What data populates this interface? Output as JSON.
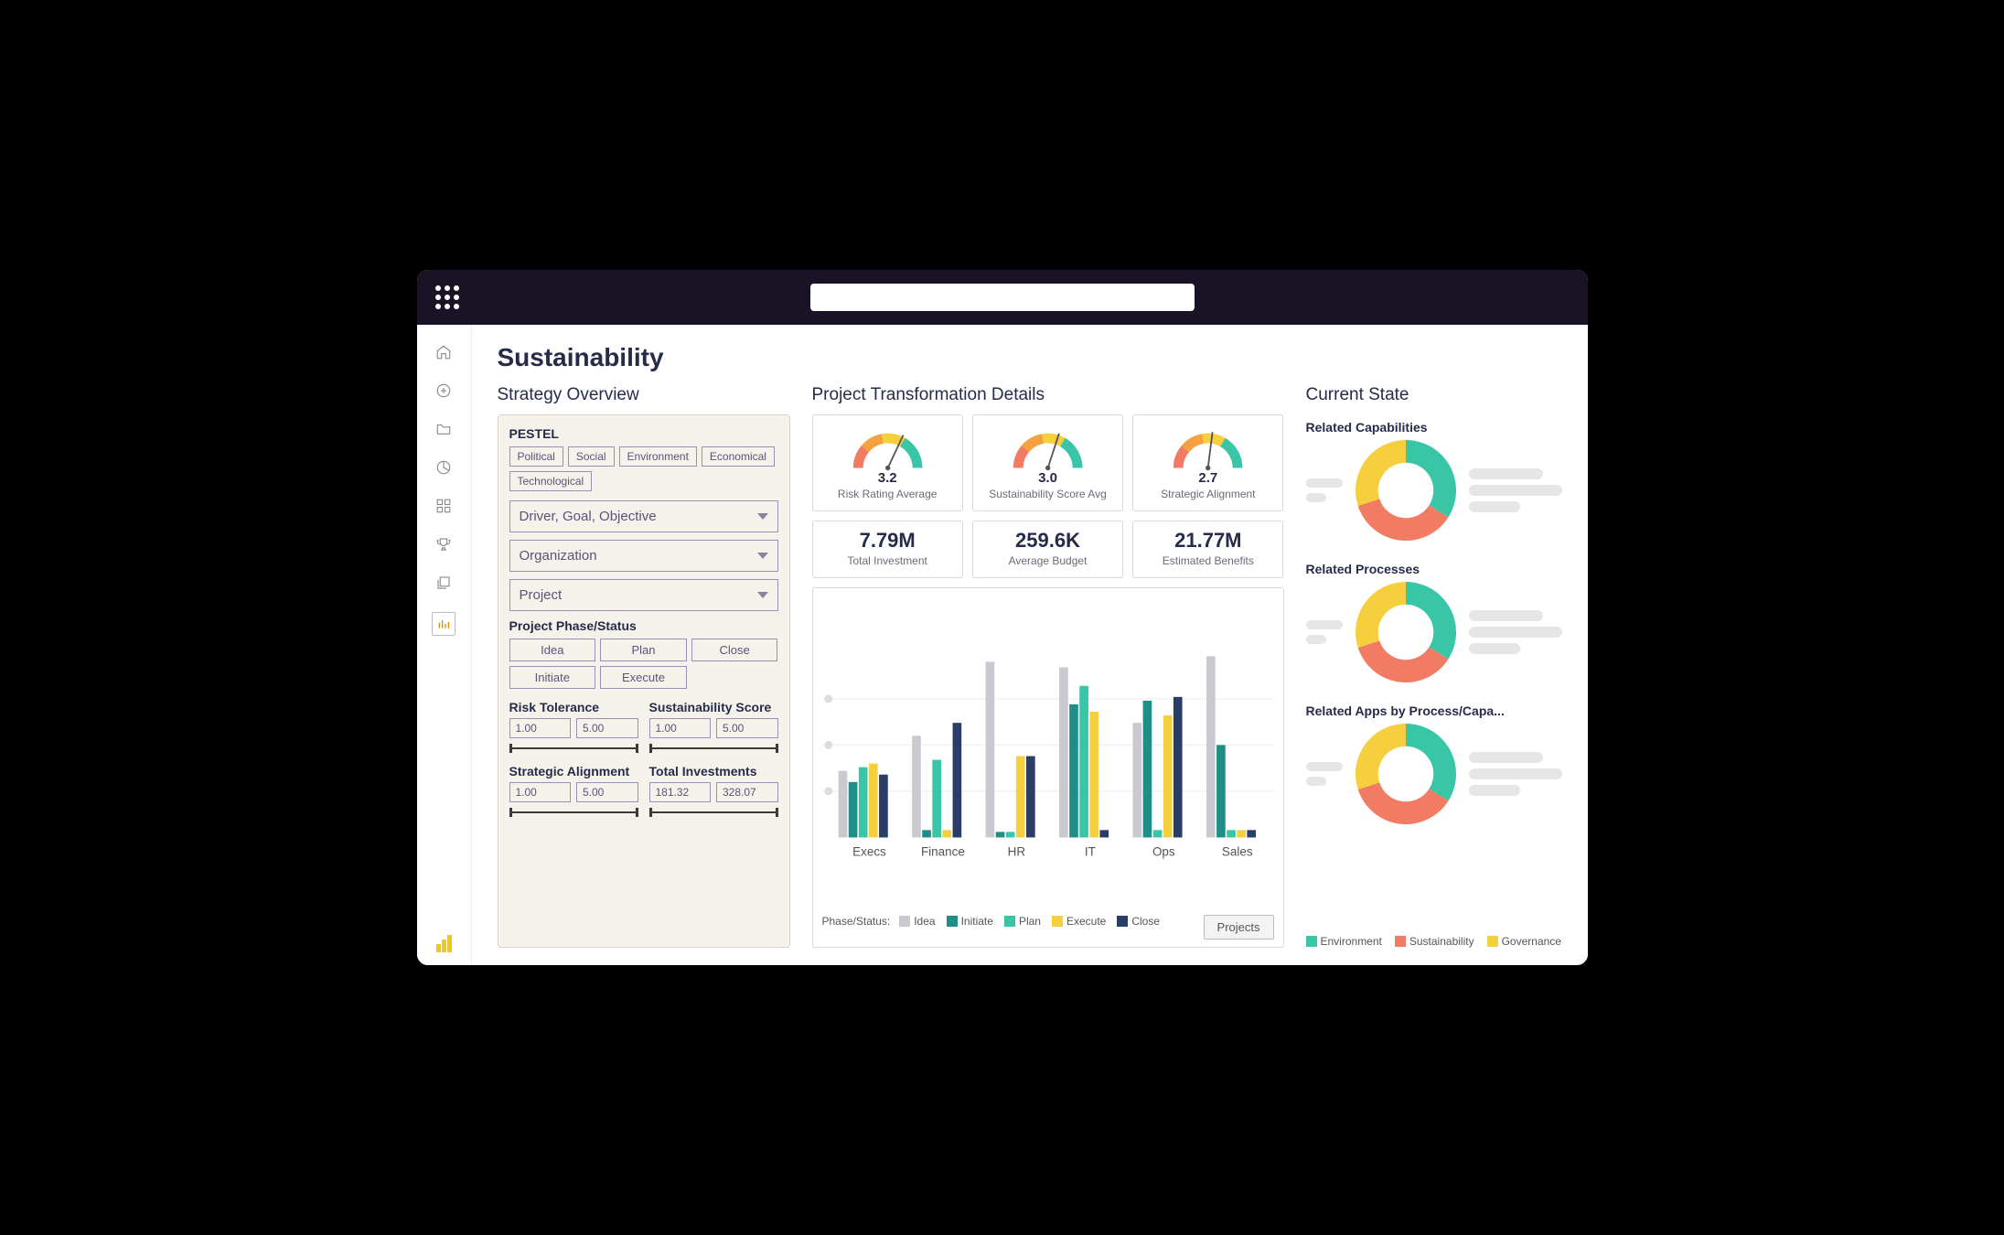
{
  "page_title": "Sustainability",
  "colors": {
    "text_dark": "#272b4a",
    "text_muted": "#6a6a78",
    "border_purple": "#9a8fb5",
    "panel_bg": "#f5f2ec",
    "card_border": "#d7d7de",
    "green": "#38c6a6",
    "coral": "#f27b63",
    "yellow": "#f6cf3f",
    "navy": "#2a3d66",
    "grey": "#c9c9cf",
    "teal": "#1f8e89",
    "skeleton": "#e6e6e6"
  },
  "strategy": {
    "title": "Strategy Overview",
    "pestel_label": "PESTEL",
    "pestel_items": [
      "Political",
      "Social",
      "Environment",
      "Economical",
      "Technological"
    ],
    "dropdowns": [
      {
        "label": "Driver, Goal, Objective"
      },
      {
        "label": "Organization"
      },
      {
        "label": "Project"
      }
    ],
    "phase_label": "Project Phase/Status",
    "phase_items": [
      "Idea",
      "Plan",
      "Close",
      "Initiate",
      "Execute"
    ],
    "ranges": [
      {
        "label": "Risk Tolerance",
        "min": "1.00",
        "max": "5.00"
      },
      {
        "label": "Sustainability Score",
        "min": "1.00",
        "max": "5.00"
      },
      {
        "label": "Strategic Alignment",
        "min": "1.00",
        "max": "5.00"
      },
      {
        "label": "Total Investments",
        "min": "181.32",
        "max": "328.07"
      }
    ]
  },
  "project": {
    "title": "Project Transformation Details",
    "gauges": [
      {
        "value": "3.2",
        "label": "Risk Rating Average",
        "frac": 0.64
      },
      {
        "value": "3.0",
        "label": "Sustainability Score Avg",
        "frac": 0.6
      },
      {
        "value": "2.7",
        "label": "Strategic Alignment",
        "frac": 0.54
      }
    ],
    "kpis": [
      {
        "value": "7.79M",
        "label": "Total Investment"
      },
      {
        "value": "259.6K",
        "label": "Average Budget"
      },
      {
        "value": "21.77M",
        "label": "Estimated Benefits"
      }
    ],
    "bar_chart": {
      "categories": [
        "Execs",
        "Finance",
        "HR",
        "IT",
        "Ops",
        "Sales"
      ],
      "phase_order": [
        "Idea",
        "Initiate",
        "Plan",
        "Execute",
        "Close"
      ],
      "phase_colors": {
        "Idea": "#c9c9cf",
        "Initiate": "#1f8e89",
        "Plan": "#38c6a6",
        "Execute": "#f6cf3f",
        "Close": "#2a3d66"
      },
      "ymax": 100,
      "data": {
        "Execs": {
          "Idea": 36,
          "Initiate": 30,
          "Plan": 38,
          "Execute": 40,
          "Close": 34
        },
        "Finance": {
          "Idea": 55,
          "Initiate": 4,
          "Plan": 42,
          "Execute": 4,
          "Close": 62
        },
        "HR": {
          "Idea": 95,
          "Initiate": 3,
          "Plan": 3,
          "Execute": 44,
          "Close": 44
        },
        "IT": {
          "Idea": 92,
          "Initiate": 72,
          "Plan": 82,
          "Execute": 68,
          "Close": 4
        },
        "Ops": {
          "Idea": 62,
          "Initiate": 74,
          "Plan": 4,
          "Execute": 66,
          "Close": 76
        },
        "Sales": {
          "Idea": 98,
          "Initiate": 50,
          "Plan": 4,
          "Execute": 4,
          "Close": 4
        }
      },
      "legend_title": "Phase/Status:",
      "projects_button": "Projects"
    }
  },
  "current": {
    "title": "Current State",
    "sections": [
      {
        "title": "Related Capabilities"
      },
      {
        "title": "Related Processes"
      },
      {
        "title": "Related Apps by Process/Capa..."
      }
    ],
    "donut": {
      "slices": [
        {
          "label": "Environment",
          "color": "#38c6a6",
          "frac": 0.34
        },
        {
          "label": "Sustainability",
          "color": "#f27b63",
          "frac": 0.36
        },
        {
          "label": "Governance",
          "color": "#f6cf3f",
          "frac": 0.3
        }
      ],
      "inner_ratio": 0.55
    }
  },
  "sidebar_icons": [
    "home-icon",
    "add-icon",
    "folder-icon",
    "pie-icon",
    "apps-icon",
    "trophy-icon",
    "stack-icon",
    "chart-icon"
  ]
}
